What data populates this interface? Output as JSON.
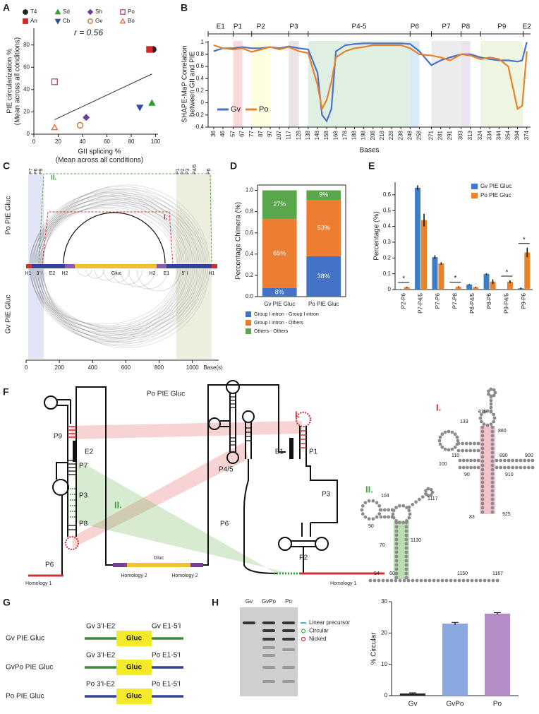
{
  "panel_labels": [
    "A",
    "B",
    "C",
    "D",
    "E",
    "F",
    "G",
    "H"
  ],
  "chart_data": [
    {
      "type": "scatter",
      "annotation": "r = 0.56",
      "xlabel": [
        "GII splicing %",
        "(Mean across all conditions)"
      ],
      "ylabel": [
        "PIE circularization %",
        "(Mean across all conditions)"
      ],
      "xlim": [
        0,
        102
      ],
      "xticks": [
        0,
        20,
        40,
        60,
        80,
        100
      ],
      "ylim": [
        0,
        95
      ],
      "yticks": [
        0,
        20,
        40,
        60,
        80
      ],
      "series": [
        {
          "name": "T4",
          "color": "#222222",
          "marker": "circle",
          "filled": true,
          "x": [
            98
          ],
          "values": [
            76
          ]
        },
        {
          "name": "An",
          "color": "#d62728",
          "marker": "square",
          "filled": true,
          "x": [
            95
          ],
          "values": [
            76
          ]
        },
        {
          "name": "Sd",
          "color": "#2ca02c",
          "marker": "triangle",
          "filled": true,
          "x": [
            97
          ],
          "values": [
            28
          ]
        },
        {
          "name": "Cb",
          "color": "#2a4f9e",
          "marker": "triangle-down",
          "filled": true,
          "x": [
            87
          ],
          "values": [
            24
          ]
        },
        {
          "name": "Sh",
          "color": "#6a3d9a",
          "marker": "diamond",
          "filled": true,
          "x": [
            43
          ],
          "values": [
            15
          ]
        },
        {
          "name": "Gv",
          "color": "#c87533",
          "marker": "circle",
          "filled": false,
          "x": [
            38
          ],
          "values": [
            8
          ]
        },
        {
          "name": "Po",
          "color": "#c0508a",
          "marker": "square",
          "filled": false,
          "x": [
            17
          ],
          "values": [
            47
          ]
        },
        {
          "name": "Bo",
          "color": "#e07040",
          "marker": "triangle",
          "filled": false,
          "x": [
            17
          ],
          "values": [
            6
          ]
        }
      ],
      "trendline": {
        "x": [
          17,
          97
        ],
        "values": [
          13,
          54
        ]
      }
    },
    {
      "type": "line",
      "ylabel": [
        "SHAPE-MaP Correlation",
        "between GII and PIE"
      ],
      "xlabel": "Bases",
      "xlim": [
        30,
        378
      ],
      "xticks": [
        36,
        46,
        57,
        67,
        77,
        87,
        97,
        107,
        117,
        128,
        138,
        148,
        158,
        168,
        178,
        188,
        198,
        208,
        218,
        228,
        238,
        248,
        258,
        271,
        281,
        291,
        303,
        313,
        324,
        334,
        344,
        354,
        364,
        374
      ],
      "ylim": [
        -0.4,
        1.02
      ],
      "yticks": [
        -0.4,
        -0.2,
        0,
        0.2,
        0.4,
        0.6,
        0.8,
        1
      ],
      "regions": [
        {
          "name": "E1",
          "range": [
            30,
            57
          ]
        },
        {
          "name": "P1",
          "range": [
            57,
            67
          ],
          "color": "#f9d9d9"
        },
        {
          "name": "P2",
          "range": [
            77,
            97
          ],
          "color": "#fdfde0"
        },
        {
          "name": "P3",
          "range": [
            117,
            128
          ],
          "color": "#ece4e4"
        },
        {
          "name": "P4-5",
          "range": [
            138,
            248
          ],
          "color": "#dff0e3"
        },
        {
          "name": "P6",
          "range": [
            248,
            258
          ],
          "color": "#d8ecf7"
        },
        {
          "name": "P7",
          "range": [
            271,
            303
          ],
          "color": "#ececec"
        },
        {
          "name": "P8",
          "range": [
            303,
            313
          ],
          "color": "#ebe3ee"
        },
        {
          "name": "P9",
          "range": [
            324,
            370
          ],
          "color": "#eef5e1"
        },
        {
          "name": "E2",
          "range": [
            370,
            378
          ]
        }
      ],
      "x": [
        36,
        46,
        57,
        67,
        77,
        87,
        97,
        107,
        117,
        128,
        138,
        148,
        153,
        158,
        163,
        168,
        178,
        188,
        198,
        208,
        218,
        228,
        238,
        248,
        258,
        271,
        281,
        291,
        303,
        313,
        324,
        334,
        344,
        354,
        364,
        369,
        374
      ],
      "series": [
        {
          "name": "Gv",
          "color": "#4a72c8",
          "values": [
            0.85,
            0.9,
            0.9,
            0.92,
            0.9,
            0.9,
            0.92,
            0.9,
            0.93,
            0.9,
            0.88,
            0.5,
            -0.2,
            -0.3,
            -0.1,
            0.85,
            0.95,
            0.97,
            0.98,
            0.98,
            0.98,
            0.98,
            0.98,
            0.97,
            0.85,
            0.62,
            0.7,
            0.75,
            0.8,
            0.8,
            0.75,
            0.72,
            0.7,
            0.7,
            0.68,
            0.7,
            1
          ]
        },
        {
          "name": "Po",
          "color": "#e8822b",
          "values": [
            0.95,
            0.9,
            0.88,
            0.9,
            0.84,
            0.88,
            0.92,
            0.88,
            0.92,
            0.85,
            0.82,
            0.3,
            -0.1,
            0.05,
            0.35,
            0.75,
            0.85,
            0.9,
            0.92,
            0.95,
            0.95,
            0.95,
            0.95,
            0.9,
            0.8,
            0.78,
            0.75,
            0.7,
            0.8,
            0.78,
            0.72,
            0.75,
            0.72,
            0.6,
            -0.1,
            -0.05,
            0.85
          ]
        }
      ]
    },
    {
      "type": "stacked-bar",
      "ylabel": "Percentage Chimera (%)",
      "categories": [
        "Gv PIE Gluc",
        "Po PIE Gluc"
      ],
      "ylim": [
        0,
        1.05
      ],
      "yticks": [
        {
          "value": 0,
          "label": "0.0"
        },
        0.2,
        0.4,
        0.6,
        0.8,
        {
          "value": 1,
          "label": "1.0"
        }
      ],
      "series": [
        {
          "name": "Group I intron - Group I intron",
          "color": "#4472c4",
          "values": [
            0.08,
            0.38
          ],
          "value_labels": [
            "8%",
            "38%"
          ]
        },
        {
          "name": "Group I intron - Others",
          "color": "#ed7d31",
          "values": [
            0.65,
            0.53
          ],
          "value_labels": [
            "65%",
            "53%"
          ]
        },
        {
          "name": "Others - Others",
          "color": "#5aa64a",
          "values": [
            0.27,
            0.09
          ],
          "value_labels": [
            "27%",
            "9%"
          ]
        }
      ]
    },
    {
      "type": "grouped-bar",
      "ylabel": "Percentage (%)",
      "categories": [
        "P2-P6",
        "P7-P4/5",
        "P7-P6",
        "P7-P8",
        "P8-P4/5",
        "P8-P6",
        "P9-P4/5",
        "P9-P6"
      ],
      "ylim": [
        0,
        0.68
      ],
      "yticks": [
        0,
        0.1,
        0.2,
        0.3,
        0.4,
        0.5,
        0.6
      ],
      "legend": "upper-right",
      "significance": [
        "*",
        null,
        null,
        "*",
        null,
        null,
        "*",
        "*"
      ],
      "series": [
        {
          "name": "Gv PIE Gluc",
          "color": "#3f7ec5",
          "values": [
            0.002,
            0.645,
            0.205,
            0.003,
            0.032,
            0.098,
            0.002,
            0.008
          ],
          "errors": [
            0.001,
            0.015,
            0.012,
            0.001,
            0.003,
            0.005,
            0.001,
            0.004
          ]
        },
        {
          "name": "Po PIE Gluc",
          "color": "#e8822b",
          "values": [
            0.015,
            0.44,
            0.165,
            0.017,
            0.015,
            0.05,
            0.05,
            0.235
          ],
          "errors": [
            0.003,
            0.04,
            0.008,
            0.003,
            0.003,
            0.015,
            0.008,
            0.03
          ]
        }
      ]
    },
    {
      "type": "bar",
      "ylabel": "% Circular",
      "categories": [
        "Gv",
        "GvPo",
        "Po"
      ],
      "values": [
        0.7,
        23,
        26.2
      ],
      "errors": [
        0.2,
        0.4,
        0.3
      ],
      "colors": [
        "#222222",
        "#8aa7e0",
        "#b48cc8"
      ],
      "ylim": [
        0,
        30
      ],
      "yticks": [
        0,
        10,
        20,
        30
      ]
    }
  ],
  "panel_c": {
    "tracks": [
      "Po PIE Gluc",
      "Gv PIE Gluc"
    ],
    "interaction_labels": [
      "I.",
      "II."
    ],
    "left_regions": [
      "P7",
      "P6",
      "P9"
    ],
    "right_regions": [
      "P1",
      "P2",
      "P3",
      "P4/5",
      "P6"
    ],
    "bar_labels": [
      "H1",
      "3' I",
      "E2",
      "H2",
      "Gluc",
      "H2",
      "E1",
      "5' I",
      "H1"
    ],
    "xlabel": "Base(s)",
    "xlim": [
      0,
      1150
    ],
    "xticks": [
      0,
      200,
      400,
      600,
      800,
      1000
    ]
  },
  "panel_f": {
    "title": "Po PIE Gluc",
    "labels": [
      "P9",
      "E2",
      "P7",
      "P3",
      "P8",
      "P6",
      "Homology 1",
      "Gluc",
      "Homology 2",
      "Homology 2",
      "P4/5",
      "E1",
      "P1",
      "P3",
      "P6",
      "P2",
      "Homology 1"
    ],
    "interaction_labels": [
      "I.",
      "II."
    ],
    "inset_i": {
      "label": "I.",
      "positions": [
        875,
        133,
        880,
        110,
        100,
        890,
        900,
        910,
        90,
        925,
        83
      ]
    },
    "inset_ii": {
      "label": "II.",
      "positions": [
        104,
        1117,
        90,
        70,
        1130,
        54,
        60,
        1150,
        1167
      ]
    }
  },
  "panel_g": {
    "rows": [
      {
        "name": "Gv PIE Gluc",
        "left": "Gv 3'I-E2",
        "right": "Gv E1-5'I",
        "insert": "Gluc",
        "left_color": "#3d8a3d",
        "right_color": "#3d8a3d"
      },
      {
        "name": "GvPo PIE Gluc",
        "left": "Gv 3'I-E2",
        "right": "Po E1-5'I",
        "insert": "Gluc",
        "left_color": "#3d8a3d",
        "right_color": "#33419a"
      },
      {
        "name": "Po PIE Gluc",
        "left": "Po 3'I-E2",
        "right": "Po E1-5'I",
        "insert": "Gluc",
        "left_color": "#33419a",
        "right_color": "#33419a"
      }
    ]
  },
  "panel_h_gel": {
    "lanes": [
      "Gv",
      "GvPo",
      "Po"
    ],
    "legend": [
      {
        "label": "Linear precursor",
        "color": "#21c7c7"
      },
      {
        "label": "Circular",
        "color": "#39b54a"
      },
      {
        "label": "Nicked",
        "color": "#e03030"
      }
    ]
  }
}
